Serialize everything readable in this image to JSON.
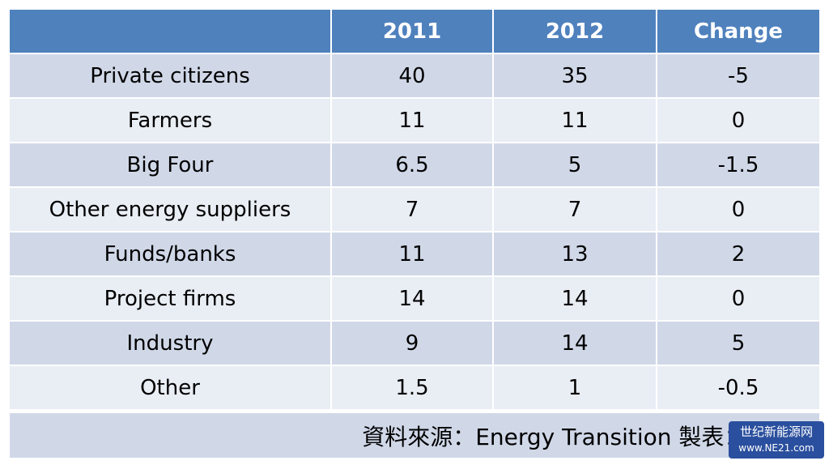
{
  "table": {
    "header": [
      "2011",
      "2012",
      "Change"
    ],
    "rows": [
      [
        "Private citizens",
        40,
        35,
        -5
      ],
      [
        "Farmers",
        11,
        11,
        0
      ],
      [
        "Big Four",
        6.5,
        5,
        -1.5
      ],
      [
        "Other energy suppliers",
        7,
        7,
        0
      ],
      [
        "Funds/banks",
        11,
        13,
        2
      ],
      [
        "Project firms",
        14,
        14,
        0
      ],
      [
        "Industry",
        9,
        14,
        5
      ],
      [
        "Other",
        1.5,
        1,
        -0.5
      ]
    ]
  },
  "footer": {
    "source": "資料來源：Energy Transition  製表：Te"
  },
  "watermark": {
    "name": "世纪新能源网",
    "url": "www.NE21.com"
  }
}
